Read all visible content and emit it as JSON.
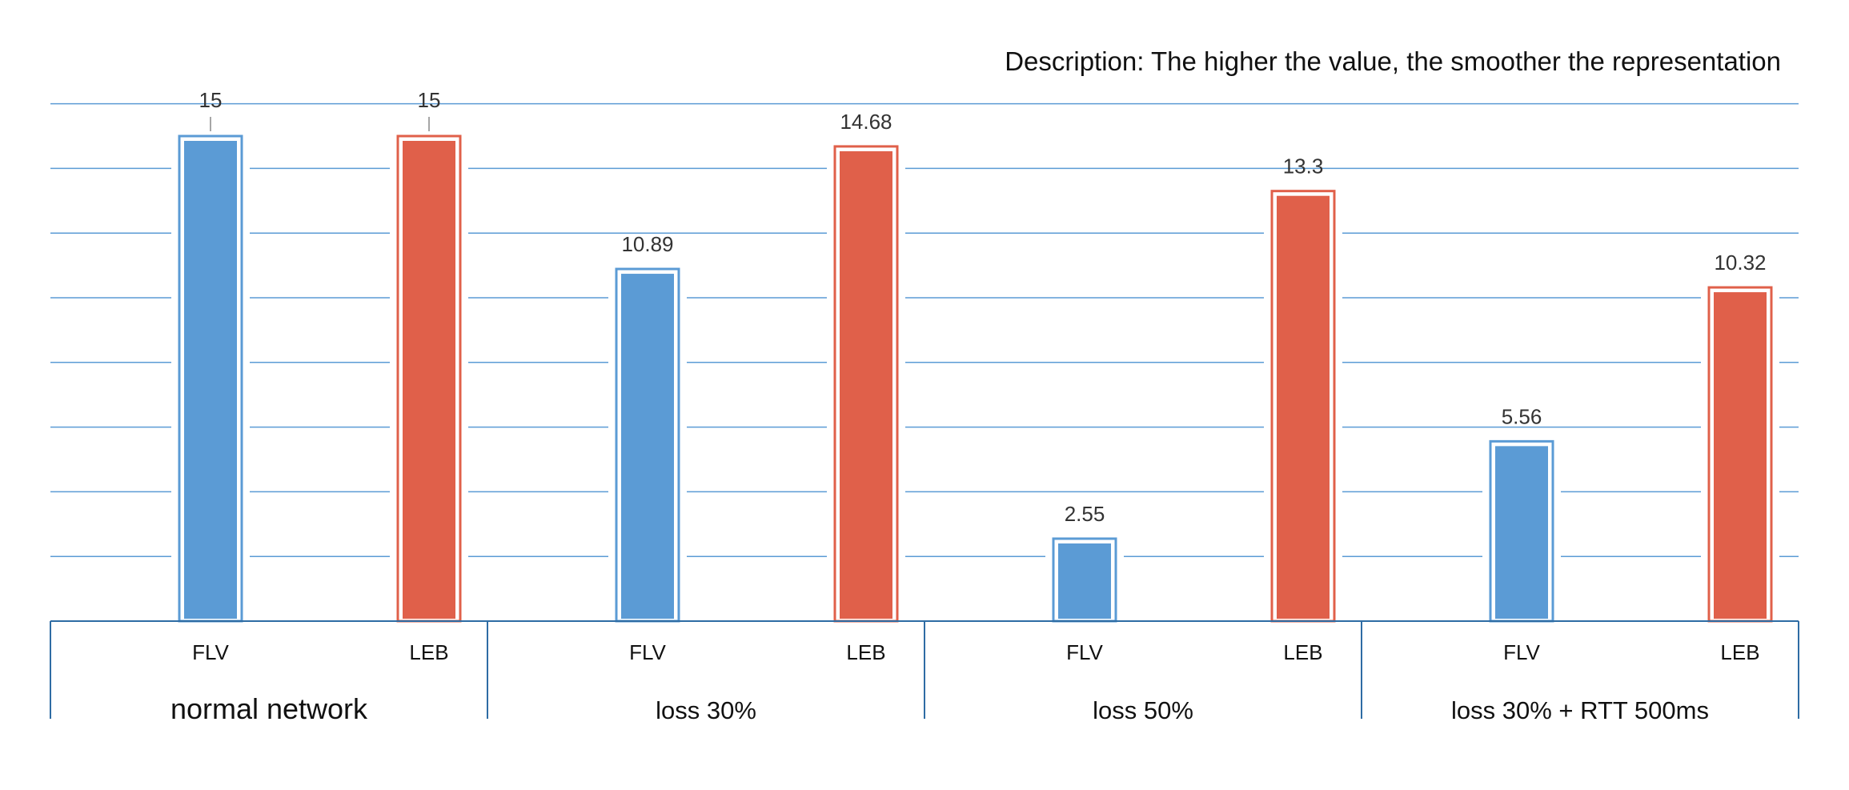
{
  "chart_data": {
    "type": "bar",
    "title": "",
    "description": "Description: The higher the value, the smoother the representation",
    "xlabel": "",
    "ylabel": "",
    "ylim": [
      0,
      16
    ],
    "grid": true,
    "legend": "none",
    "groups": [
      {
        "label": "normal network",
        "bars": [
          {
            "label": "FLV",
            "value": 15,
            "value_label": "15"
          },
          {
            "label": "LEB",
            "value": 15,
            "value_label": "15"
          }
        ]
      },
      {
        "label": "loss 30%",
        "bars": [
          {
            "label": "FLV",
            "value": 10.89,
            "value_label": "10.89"
          },
          {
            "label": "LEB",
            "value": 14.68,
            "value_label": "14.68"
          }
        ]
      },
      {
        "label": "loss 50%",
        "bars": [
          {
            "label": "FLV",
            "value": 2.55,
            "value_label": "2.55"
          },
          {
            "label": "LEB",
            "value": 13.3,
            "value_label": "13.3"
          }
        ]
      },
      {
        "label": "loss 30% + RTT 500ms",
        "bars": [
          {
            "label": "FLV",
            "value": 5.56,
            "value_label": "5.56"
          },
          {
            "label": "LEB",
            "value": 10.32,
            "value_label": "10.32"
          }
        ]
      }
    ],
    "colors": {
      "FLV": "#5B9BD5",
      "LEB": "#E0604A",
      "grid": "#5B9BD5",
      "axis": "#2E6CA4",
      "text": "#333333"
    }
  }
}
